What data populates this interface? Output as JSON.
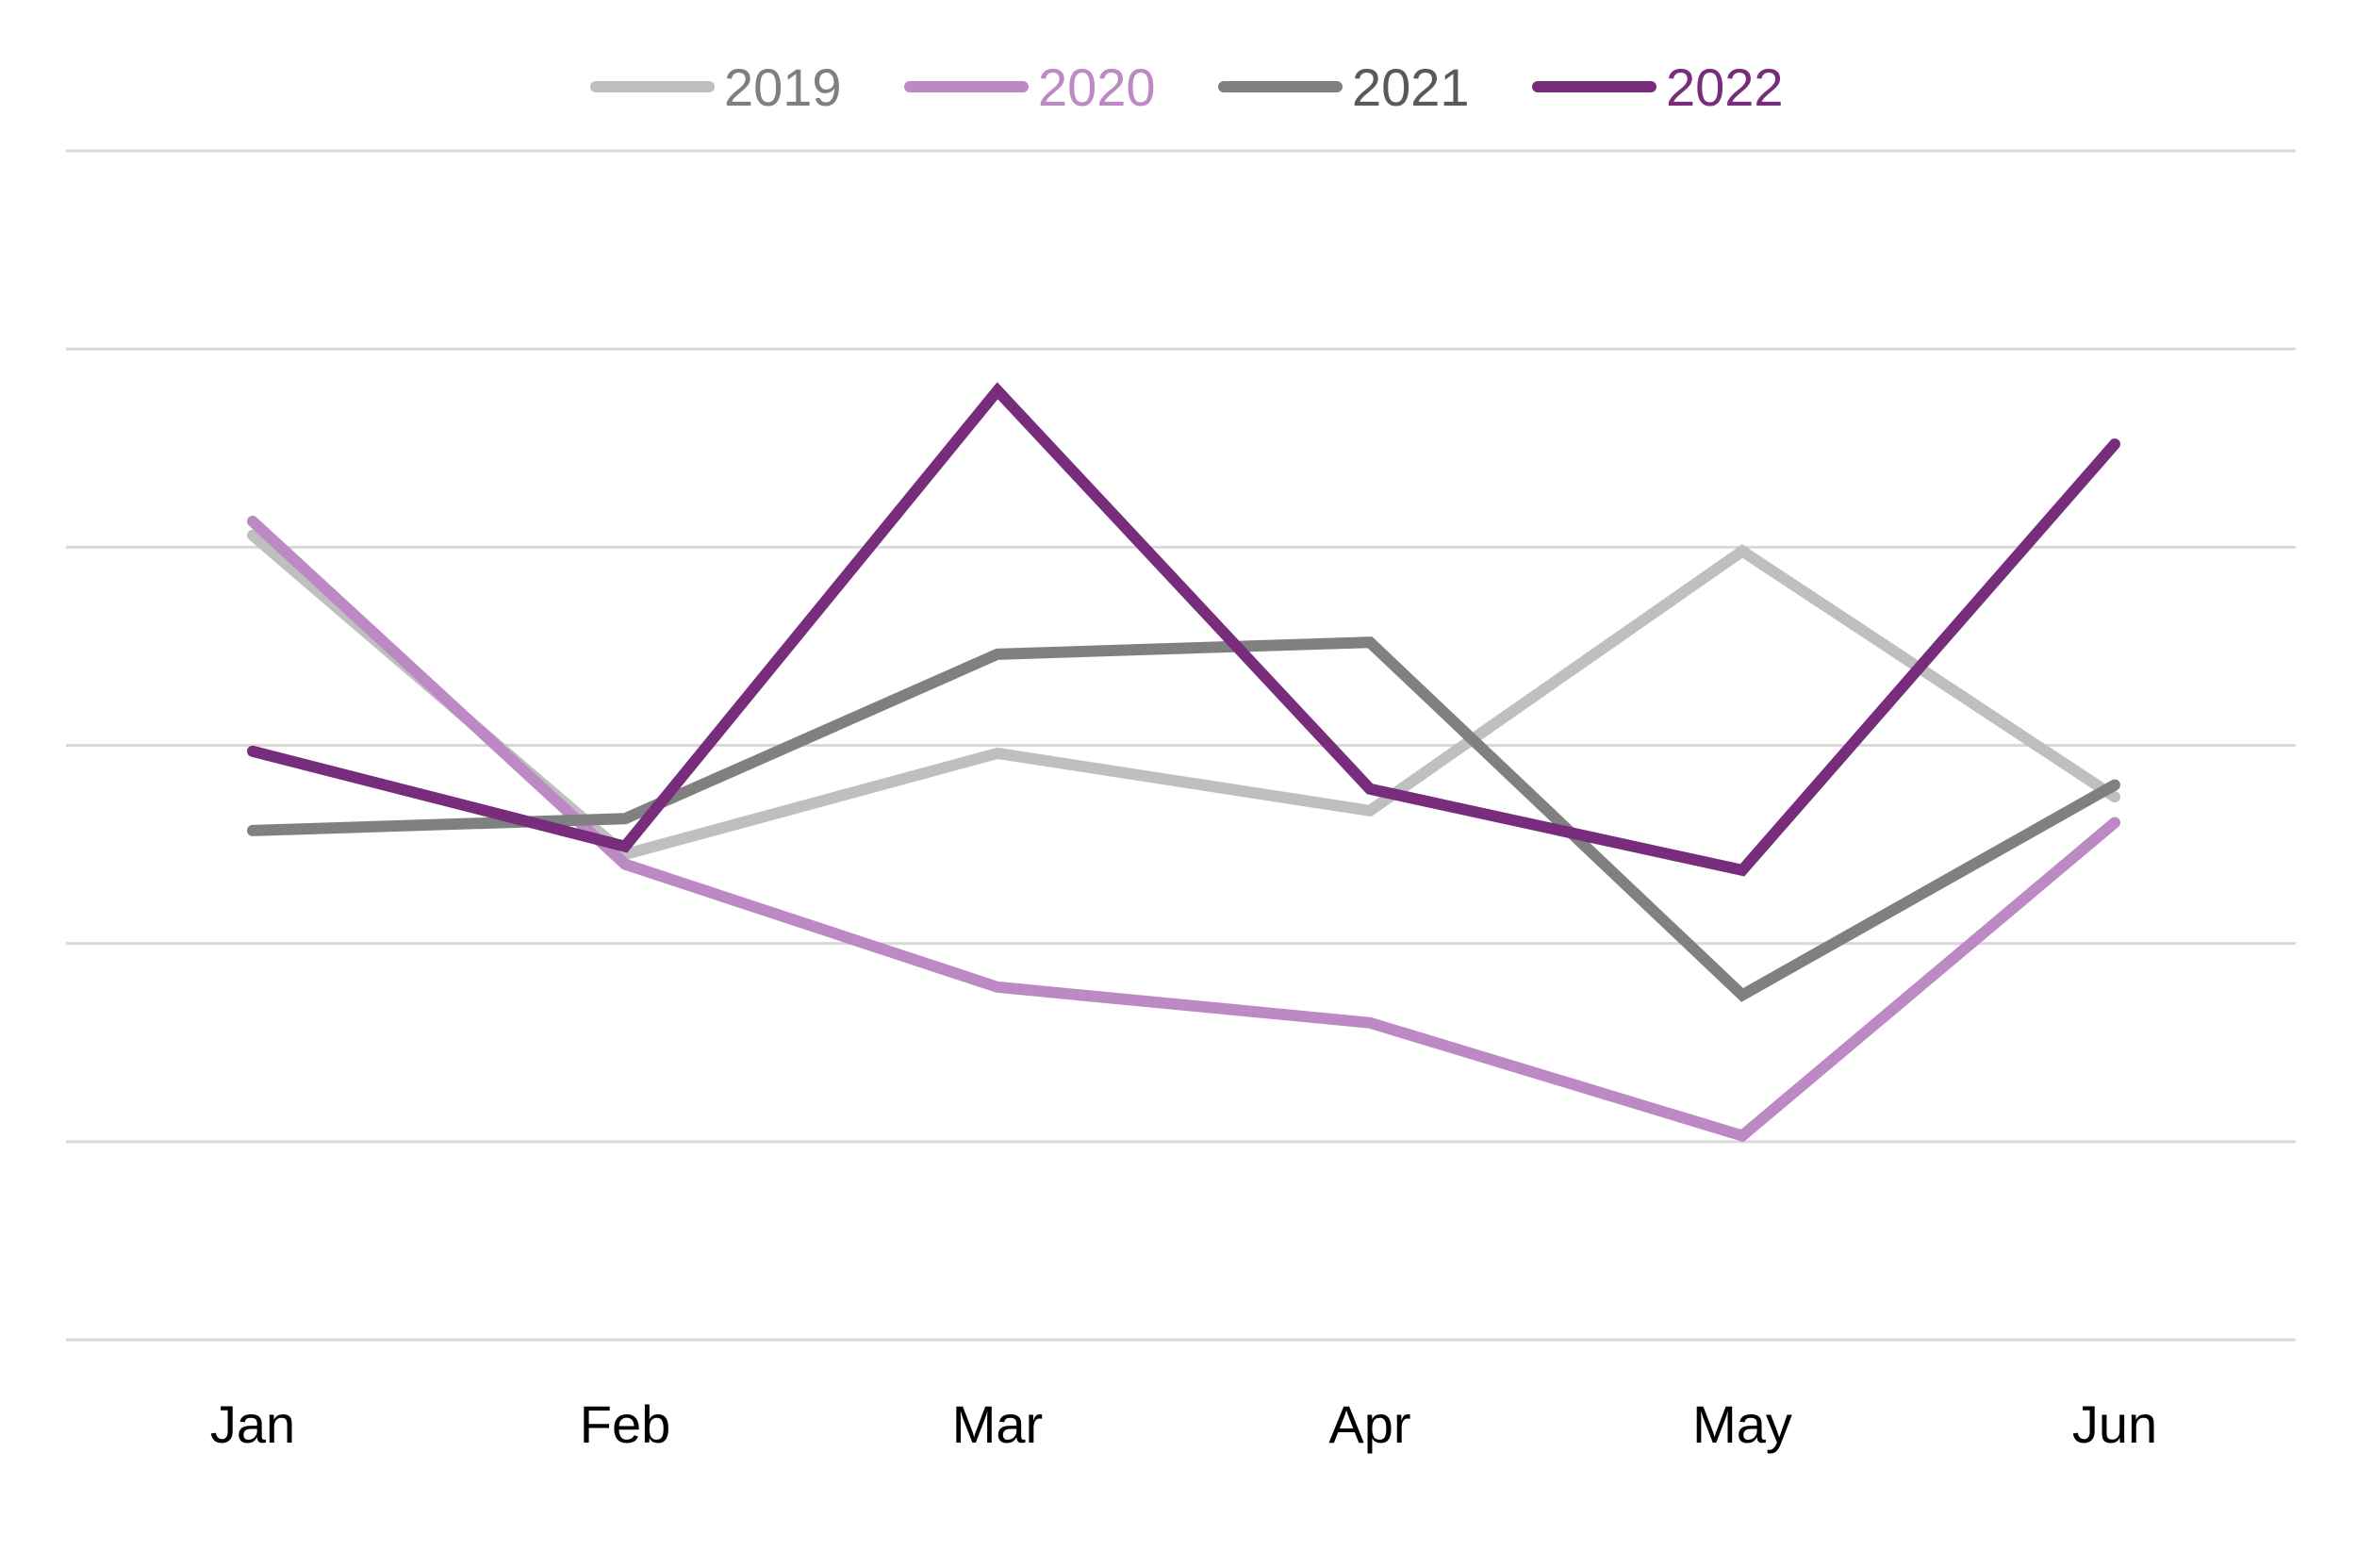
{
  "chart_data": {
    "type": "line",
    "title": "",
    "xlabel": "",
    "ylabel": "",
    "categories": [
      "Jan",
      "Feb",
      "Mar",
      "Apr",
      "May",
      "Jun"
    ],
    "ylim": [
      0,
      6
    ],
    "grid": true,
    "legend": "top-center",
    "series": [
      {
        "name": "2019",
        "color": "#BFBFBF",
        "values": [
          4.06,
          2.45,
          2.96,
          2.67,
          3.98,
          2.74
        ]
      },
      {
        "name": "2020",
        "color": "#BD89C4",
        "values": [
          4.13,
          2.4,
          1.78,
          1.6,
          1.03,
          2.61
        ]
      },
      {
        "name": "2021",
        "color": "#808080",
        "values": [
          2.57,
          2.63,
          3.46,
          3.52,
          1.74,
          2.8
        ]
      },
      {
        "name": "2022",
        "color": "#772C7C",
        "values": [
          2.97,
          2.49,
          4.79,
          2.78,
          2.37,
          4.52
        ]
      }
    ]
  }
}
